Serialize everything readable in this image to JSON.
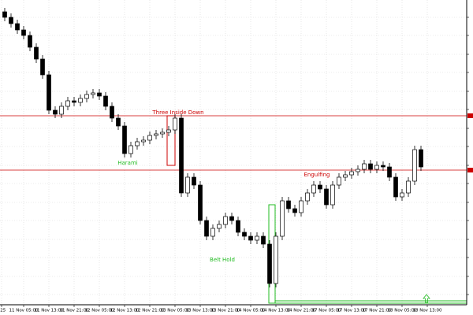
{
  "chart_data": {
    "type": "candlestick",
    "open": [
      372,
      365,
      357,
      349,
      342,
      327,
      312,
      292,
      247,
      242,
      252,
      259,
      257,
      262,
      267,
      269,
      265,
      252,
      237,
      227,
      192,
      202,
      207,
      209,
      215,
      217,
      219,
      222,
      237,
      142,
      162,
      152,
      107,
      87,
      97,
      102,
      112,
      107,
      92,
      87,
      82,
      87,
      77,
      27,
      87,
      132,
      122,
      117,
      132,
      142,
      152,
      147,
      127,
      152,
      162,
      165,
      169,
      172,
      179,
      172,
      177,
      175,
      162,
      137,
      142,
      157,
      197
    ],
    "high": [
      377,
      370,
      362,
      354,
      347,
      332,
      317,
      297,
      252,
      257,
      264,
      264,
      267,
      272,
      274,
      274,
      270,
      257,
      242,
      232,
      207,
      212,
      214,
      220,
      222,
      224,
      227,
      242,
      242,
      167,
      167,
      157,
      112,
      102,
      107,
      117,
      117,
      112,
      97,
      92,
      92,
      92,
      82,
      92,
      137,
      137,
      127,
      137,
      147,
      157,
      157,
      152,
      157,
      167,
      170,
      174,
      177,
      184,
      184,
      182,
      182,
      180,
      167,
      147,
      162,
      202,
      202
    ],
    "low": [
      360,
      352,
      344,
      337,
      322,
      307,
      287,
      242,
      237,
      237,
      247,
      252,
      252,
      257,
      262,
      260,
      247,
      232,
      222,
      187,
      187,
      197,
      202,
      204,
      210,
      212,
      214,
      217,
      137,
      137,
      147,
      102,
      82,
      82,
      92,
      97,
      102,
      87,
      82,
      77,
      77,
      72,
      22,
      22,
      82,
      117,
      112,
      112,
      127,
      137,
      142,
      122,
      122,
      147,
      157,
      160,
      164,
      167,
      167,
      167,
      170,
      157,
      132,
      132,
      137,
      152,
      170
    ],
    "close": [
      365,
      357,
      349,
      342,
      327,
      312,
      292,
      247,
      242,
      252,
      259,
      257,
      262,
      267,
      269,
      265,
      252,
      237,
      227,
      192,
      202,
      207,
      209,
      215,
      217,
      219,
      222,
      237,
      142,
      162,
      152,
      107,
      87,
      97,
      102,
      112,
      107,
      92,
      87,
      82,
      87,
      77,
      27,
      87,
      132,
      122,
      117,
      132,
      142,
      152,
      147,
      127,
      152,
      162,
      165,
      169,
      172,
      179,
      172,
      177,
      175,
      162,
      137,
      142,
      157,
      197,
      175
    ],
    "up_color": "#ffffff",
    "down_color": "#000000",
    "ylim": [
      0,
      387
    ],
    "yticks": [
      13,
      36,
      60,
      83,
      107,
      130,
      154,
      177,
      201,
      224,
      248,
      271,
      295,
      318,
      342,
      365
    ],
    "xlim": [
      -0.75,
      73
    ],
    "xticks": [
      {
        "value": -0.5,
        "label": "025"
      },
      {
        "value": 3,
        "label": "11 Nov 05:00"
      },
      {
        "value": 7,
        "label": "11 Nov 13:00"
      },
      {
        "value": 11,
        "label": "11 Nov 21:00"
      },
      {
        "value": 15,
        "label": "12 Nov 05:00"
      },
      {
        "value": 19,
        "label": "12 Nov 13:00"
      },
      {
        "value": 23,
        "label": "12 Nov 21:00"
      },
      {
        "value": 27,
        "label": "13 Nov 05:00"
      },
      {
        "value": 31,
        "label": "13 Nov 13:00"
      },
      {
        "value": 35,
        "label": "13 Nov 21:00"
      },
      {
        "value": 39,
        "label": "14 Nov 05:00"
      },
      {
        "value": 43,
        "label": "14 Nov 13:00"
      },
      {
        "value": 47,
        "label": "14 Nov 21:00"
      },
      {
        "value": 51,
        "label": "17 Nov 05:00"
      },
      {
        "value": 55,
        "label": "17 Nov 13:00"
      },
      {
        "value": 59,
        "label": "17 Nov 21:00"
      },
      {
        "value": 63,
        "label": "18 Nov 05:00"
      },
      {
        "value": 67,
        "label": "18 Nov 13:00"
      }
    ],
    "grid": true,
    "levels": [
      240,
      171
    ],
    "level_color": "#cc0000",
    "annotations": [
      "Three Inside Down",
      "Harami",
      "Engulfing",
      "Belt Hold"
    ]
  }
}
